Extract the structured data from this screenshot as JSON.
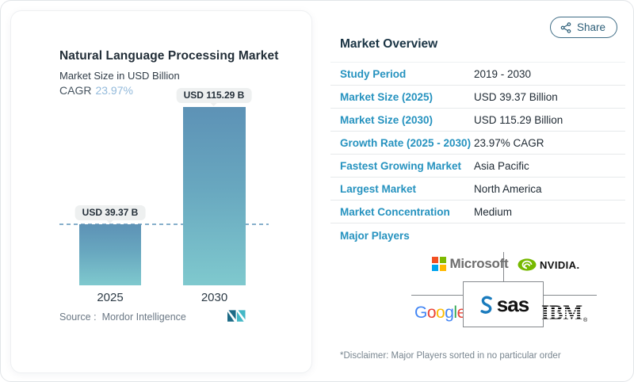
{
  "share": {
    "label": "Share"
  },
  "chart_card": {
    "title": "Natural Language Processing Market",
    "subtitle": "Market Size in USD Billion",
    "cagr_label": "CAGR",
    "cagr_value": "23.97%",
    "source_label": "Source :",
    "source_value": "Mordor Intelligence"
  },
  "chart_data": {
    "type": "bar",
    "title": "Natural Language Processing Market",
    "ylabel": "Market Size in USD Billion",
    "categories": [
      "2025",
      "2030"
    ],
    "values": [
      39.37,
      115.29
    ],
    "value_labels": [
      "USD 39.37 B",
      "USD 115.29 B"
    ],
    "ylim": [
      0,
      120
    ],
    "reference_line": 39.37,
    "grid": false,
    "legend": "none"
  },
  "overview": {
    "title": "Market Overview",
    "rows": [
      {
        "label": "Study Period",
        "value": "2019 - 2030"
      },
      {
        "label": "Market Size (2025)",
        "value": "USD 39.37 Billion"
      },
      {
        "label": "Market Size (2030)",
        "value": "USD 115.29 Billion"
      },
      {
        "label": "Growth Rate (2025 - 2030)",
        "value": "23.97% CAGR"
      },
      {
        "label": "Fastest Growing Market",
        "value": "Asia Pacific"
      },
      {
        "label": "Largest Market",
        "value": "North America"
      },
      {
        "label": "Market Concentration",
        "value": "Medium"
      }
    ],
    "major_players_label": "Major Players",
    "disclaimer": "*Disclaimer: Major Players sorted in no particular order"
  },
  "players": {
    "microsoft": {
      "label": "Microsoft"
    },
    "nvidia": {
      "label": "NVIDIA."
    },
    "google": {
      "letters": [
        {
          "ch": "G",
          "color": "#4285F4"
        },
        {
          "ch": "o",
          "color": "#EA4335"
        },
        {
          "ch": "o",
          "color": "#FBBC05"
        },
        {
          "ch": "g",
          "color": "#4285F4"
        },
        {
          "ch": "l",
          "color": "#34A853"
        },
        {
          "ch": "e",
          "color": "#EA4335"
        }
      ]
    },
    "sas": {
      "label": "sas"
    },
    "ibm": {
      "label": "IBM"
    }
  },
  "colors": {
    "accent_label_blue": "#2592bf",
    "cagr_value_blue": "#93badb",
    "bar_gradient_top": "#5d92b6",
    "bar_gradient_bottom": "#7fc9ce",
    "dashed_reference": "#87afcb",
    "header_navy": "#1a3444",
    "share_border": "#3f6d86",
    "nvidia_green": "#76b900",
    "sas_blue": "#1a7bbd",
    "microsoft_gray": "#6d6d6d"
  }
}
